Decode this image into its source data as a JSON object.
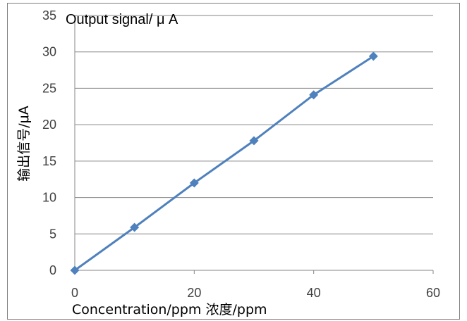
{
  "chart_data": {
    "type": "line",
    "title": "Output signal/ μ A",
    "xlabel": "Concentration/ppm 浓度/ppm",
    "ylabel": "输出信号/μA",
    "x": [
      0,
      10,
      20,
      30,
      40,
      50
    ],
    "series": [
      {
        "values": [
          0,
          5.9,
          12.0,
          17.8,
          24.1,
          29.4
        ]
      }
    ],
    "xlim": [
      0,
      60
    ],
    "ylim": [
      0,
      35
    ],
    "xticks": [
      "0",
      "20",
      "40",
      "60"
    ],
    "yticks": [
      "0",
      "5",
      "10",
      "15",
      "20",
      "25",
      "30",
      "35"
    ],
    "grid": "horizontal",
    "legend": "none",
    "colors": {
      "series": "#4f81bd",
      "grid": "#868686",
      "text": "#404040"
    }
  }
}
